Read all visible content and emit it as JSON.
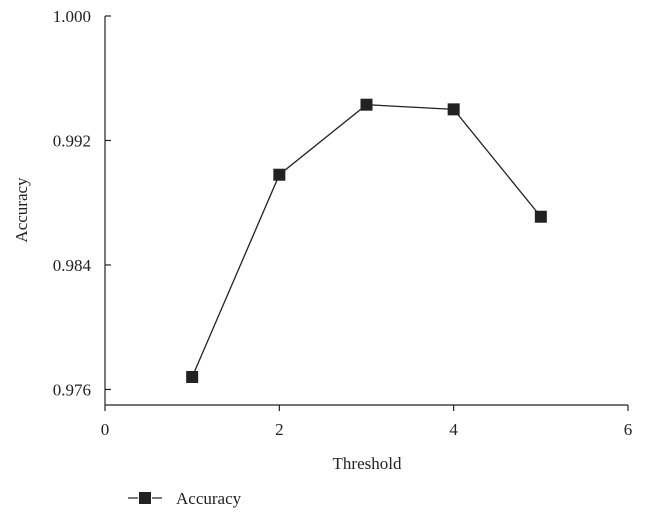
{
  "chart_data": {
    "type": "line",
    "title": "",
    "xlabel": "Threshold",
    "ylabel": "Accuracy",
    "xlim": [
      0,
      6
    ],
    "ylim": [
      0.975,
      1.0
    ],
    "xticks": [
      0,
      2,
      4,
      6
    ],
    "xtick_labels": [
      "0",
      "2",
      "4",
      "6"
    ],
    "yticks": [
      0.976,
      0.984,
      0.992,
      1.0
    ],
    "ytick_labels": [
      "0.976",
      "0.984",
      "0.992",
      "1.000"
    ],
    "grid": false,
    "legend_position": "bottom-left",
    "series": [
      {
        "name": "Accuracy",
        "marker": "square",
        "color": "#222222",
        "x": [
          1,
          2,
          3,
          4,
          5
        ],
        "y": [
          0.9768,
          0.9898,
          0.9943,
          0.994,
          0.9871
        ]
      }
    ]
  }
}
